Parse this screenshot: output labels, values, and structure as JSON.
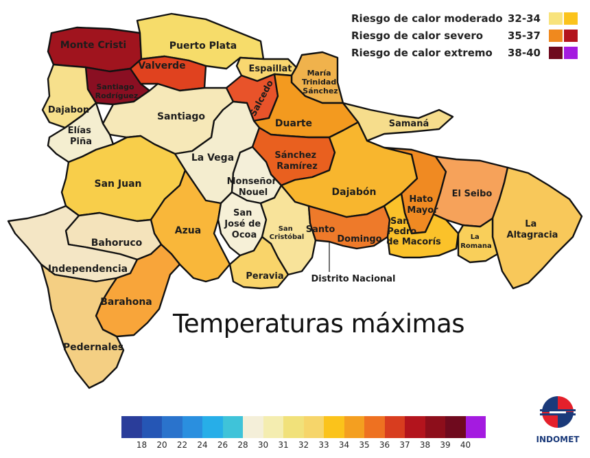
{
  "title": "Temperaturas máximas",
  "legend": [
    {
      "label": "Riesgo de calor moderado",
      "range": "32-34",
      "colors": [
        "#f8e37c",
        "#fbc31b"
      ]
    },
    {
      "label": "Riesgo de calor severo",
      "range": "35-37",
      "colors": [
        "#f0891e",
        "#b3141d"
      ]
    },
    {
      "label": "Riesgo de calor extremo",
      "range": "38-40",
      "colors": [
        "#6f0a1e",
        "#a41be0"
      ]
    }
  ],
  "scale": {
    "colors": [
      "#2a3d9a",
      "#2556b5",
      "#2a73cc",
      "#2a8fdf",
      "#27aee8",
      "#3fc3d9",
      "#f4efd9",
      "#f4edb0",
      "#f1e17a",
      "#f6d56a",
      "#fbc31b",
      "#f49f20",
      "#ee7121",
      "#d83d1f",
      "#b3141d",
      "#8d0e1b",
      "#6f0a1e",
      "#a41be0"
    ],
    "labels": [
      "18",
      "20",
      "22",
      "24",
      "26",
      "28",
      "30",
      "31",
      "32",
      "33",
      "34",
      "35",
      "36",
      "37",
      "38",
      "39",
      "40"
    ]
  },
  "provinces": [
    {
      "name": "Monte Cristi",
      "fill": "#a0141e"
    },
    {
      "name": "Puerto Plata",
      "fill": "#f6dc6a"
    },
    {
      "name": "Valverde",
      "fill": "#e0421f"
    },
    {
      "name": "Espaillat",
      "fill": "#f9d770"
    },
    {
      "name": "María Trinidad Sánchez",
      "fill": "#f0b24c"
    },
    {
      "name": "Santiago Rodríguez",
      "fill": "#8a0f22"
    },
    {
      "name": "Dajabon",
      "fill": "#f7e08c"
    },
    {
      "name": "Santiago",
      "fill": "#f6e8b8"
    },
    {
      "name": "Salcedo",
      "fill": "#e8532a"
    },
    {
      "name": "Duarte",
      "fill": "#f39a1f"
    },
    {
      "name": "Samaná",
      "fill": "#f6dd8c"
    },
    {
      "name": "Elías Piña",
      "fill": "#f4eed0"
    },
    {
      "name": "La Vega",
      "fill": "#f4edcf"
    },
    {
      "name": "Sánchez Ramírez",
      "fill": "#e9601f"
    },
    {
      "name": "San Juan",
      "fill": "#f8ce4a"
    },
    {
      "name": "Monseñor Nouel",
      "fill": "#f4efd9"
    },
    {
      "name": "Dajabón",
      "fill": "#f8b62e"
    },
    {
      "name": "Hato Mayor",
      "fill": "#f08a22"
    },
    {
      "name": "El Seibo",
      "fill": "#f6a25a"
    },
    {
      "name": "Azua",
      "fill": "#f9b73a"
    },
    {
      "name": "San José de Ocoa",
      "fill": "#f6f0d7"
    },
    {
      "name": "San Cristóbal",
      "fill": "#f8e39a"
    },
    {
      "name": "Santo",
      "fill": "#ee7a2a"
    },
    {
      "name": "Domingo",
      "fill": "#f3a13a"
    },
    {
      "name": "San Pedro de Macorís",
      "fill": "#fbc22a"
    },
    {
      "name": "La Altagracia",
      "fill": "#f8c85a"
    },
    {
      "name": "La Romana",
      "fill": "#f9cf5a"
    },
    {
      "name": "Bahoruco",
      "fill": "#f4e3bb"
    },
    {
      "name": "Independencia",
      "fill": "#f4e6c5"
    },
    {
      "name": "Peravia",
      "fill": "#f9d46a"
    },
    {
      "name": "Distrito Nacional",
      "fill": "#f7d880"
    },
    {
      "name": "Barahona",
      "fill": "#f8a53a"
    },
    {
      "name": "Pedernales",
      "fill": "#f4cf83"
    }
  ],
  "logo": {
    "text": "INDOMET"
  }
}
